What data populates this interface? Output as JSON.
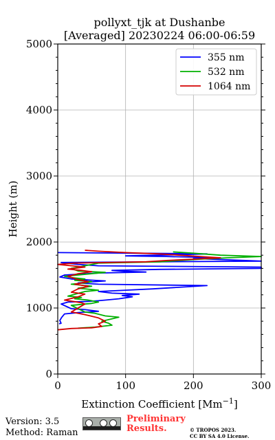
{
  "chart_data": {
    "type": "line",
    "title_line1": "pollyxt_tjk at Dushanbe",
    "title_line2": "[Averaged] 20230224 06:00-06:59",
    "xlabel": "Extinction Coefficient [Mm",
    "xlabel_sup": "−1",
    "xlabel_end": "]",
    "ylabel": "Height (m)",
    "xlim": [
      0,
      300
    ],
    "ylim": [
      0,
      5000
    ],
    "x_ticks": [
      "0",
      "100",
      "200",
      "300"
    ],
    "y_ticks": [
      "0",
      "1000",
      "2000",
      "3000",
      "4000",
      "5000"
    ],
    "grid": true,
    "legend_position": "top-right",
    "series": [
      {
        "name": "355 nm",
        "color": "#0000ff",
        "points": [
          [
            2,
            760
          ],
          [
            5,
            770
          ],
          [
            3,
            810
          ],
          [
            6,
            860
          ],
          [
            10,
            910
          ],
          [
            30,
            930
          ],
          [
            60,
            950
          ],
          [
            40,
            975
          ],
          [
            20,
            990
          ],
          [
            5,
            1060
          ],
          [
            15,
            1090
          ],
          [
            45,
            1100
          ],
          [
            60,
            1110
          ],
          [
            70,
            1120
          ],
          [
            90,
            1140
          ],
          [
            110,
            1170
          ],
          [
            95,
            1190
          ],
          [
            120,
            1210
          ],
          [
            80,
            1225
          ],
          [
            60,
            1250
          ],
          [
            100,
            1270
          ],
          [
            140,
            1290
          ],
          [
            220,
            1340
          ],
          [
            60,
            1360
          ],
          [
            30,
            1380
          ],
          [
            70,
            1410
          ],
          [
            20,
            1440
          ],
          [
            3,
            1470
          ],
          [
            10,
            1500
          ],
          [
            60,
            1530
          ],
          [
            130,
            1545
          ],
          [
            100,
            1555
          ],
          [
            80,
            1570
          ],
          [
            150,
            1585
          ],
          [
            300,
            1600
          ],
          [
            320,
            1620
          ],
          [
            60,
            1640
          ],
          [
            30,
            1660
          ],
          [
            5,
            1690
          ],
          [
            150,
            1700
          ],
          [
            300,
            1710
          ],
          [
            200,
            1750
          ],
          [
            240,
            1760
          ],
          [
            160,
            1780
          ],
          [
            100,
            1790
          ],
          [
            170,
            1805
          ],
          [
            220,
            1820
          ],
          [
            120,
            1830
          ],
          [
            0,
            1840
          ]
        ]
      },
      {
        "name": "532 nm",
        "color": "#00b000",
        "points": [
          [
            30,
            695
          ],
          [
            55,
            710
          ],
          [
            80,
            740
          ],
          [
            75,
            770
          ],
          [
            65,
            800
          ],
          [
            90,
            860
          ],
          [
            70,
            880
          ],
          [
            55,
            920
          ],
          [
            40,
            940
          ],
          [
            20,
            1040
          ],
          [
            50,
            1070
          ],
          [
            60,
            1090
          ],
          [
            45,
            1120
          ],
          [
            25,
            1140
          ],
          [
            35,
            1160
          ],
          [
            15,
            1180
          ],
          [
            40,
            1250
          ],
          [
            60,
            1270
          ],
          [
            30,
            1300
          ],
          [
            50,
            1330
          ],
          [
            20,
            1360
          ],
          [
            40,
            1380
          ],
          [
            50,
            1400
          ],
          [
            25,
            1420
          ],
          [
            40,
            1440
          ],
          [
            20,
            1460
          ],
          [
            10,
            1480
          ],
          [
            50,
            1520
          ],
          [
            70,
            1540
          ],
          [
            30,
            1560
          ],
          [
            20,
            1600
          ],
          [
            40,
            1640
          ],
          [
            60,
            1680
          ],
          [
            150,
            1700
          ],
          [
            180,
            1720
          ],
          [
            210,
            1740
          ],
          [
            250,
            1760
          ],
          [
            300,
            1780
          ],
          [
            240,
            1800
          ],
          [
            200,
            1830
          ],
          [
            170,
            1850
          ]
        ]
      },
      {
        "name": "1064 nm",
        "color": "#d40000",
        "points": [
          [
            0,
            670
          ],
          [
            20,
            690
          ],
          [
            50,
            700
          ],
          [
            65,
            720
          ],
          [
            60,
            760
          ],
          [
            70,
            800
          ],
          [
            60,
            850
          ],
          [
            40,
            900
          ],
          [
            20,
            940
          ],
          [
            40,
            1060
          ],
          [
            35,
            1080
          ],
          [
            10,
            1120
          ],
          [
            30,
            1170
          ],
          [
            40,
            1210
          ],
          [
            20,
            1240
          ],
          [
            30,
            1290
          ],
          [
            45,
            1330
          ],
          [
            25,
            1360
          ],
          [
            45,
            1400
          ],
          [
            30,
            1430
          ],
          [
            15,
            1480
          ],
          [
            30,
            1520
          ],
          [
            50,
            1550
          ],
          [
            35,
            1570
          ],
          [
            15,
            1590
          ],
          [
            40,
            1620
          ],
          [
            0,
            1660
          ],
          [
            25,
            1680
          ],
          [
            130,
            1700
          ],
          [
            160,
            1720
          ],
          [
            200,
            1740
          ],
          [
            240,
            1760
          ],
          [
            210,
            1780
          ],
          [
            180,
            1800
          ],
          [
            150,
            1820
          ],
          [
            100,
            1840
          ],
          [
            60,
            1860
          ],
          [
            40,
            1875
          ]
        ]
      }
    ]
  },
  "footer": {
    "version": "Version: 3.5",
    "method": "Method: Raman",
    "preliminary_line1": "Preliminary",
    "preliminary_line2": "Results.",
    "license_line1": "© TROPOS 2023.",
    "license_line2": "CC BY SA 4.0 License."
  }
}
